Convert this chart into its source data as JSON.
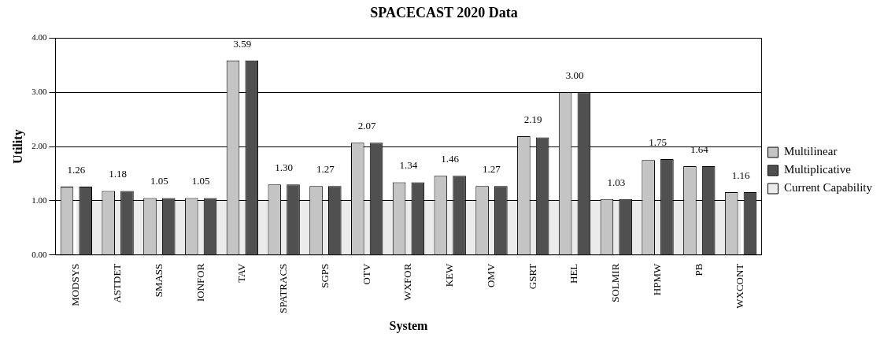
{
  "chart_data": {
    "type": "bar",
    "title": "SPACECAST 2020 Data",
    "xlabel": "System",
    "ylabel": "Utility",
    "categories": [
      "MODSYS",
      "ASTDET",
      "SMASS",
      "IONFOR",
      "TAV",
      "SPATRACS",
      "SGPS",
      "OTV",
      "WXFOR",
      "KEW",
      "OMV",
      "GSRT",
      "HEL",
      "SOLMIR",
      "HPMW",
      "PB",
      "WXCONT"
    ],
    "series": [
      {
        "name": "Multilinear",
        "color": "#c4c4c4",
        "values": [
          1.26,
          1.18,
          1.05,
          1.05,
          3.59,
          1.3,
          1.27,
          2.07,
          1.34,
          1.46,
          1.27,
          2.19,
          3.0,
          1.03,
          1.75,
          1.64,
          1.16
        ],
        "value_labels": [
          "1.26",
          "1.18",
          "1.05",
          "1.05",
          "3.59",
          "1.30",
          "1.27",
          "2.07",
          "1.34",
          "1.46",
          "1.27",
          "2.19",
          "3.00",
          "1.03",
          "1.75",
          "1.64",
          "1.16"
        ]
      },
      {
        "name": "Multiplicative",
        "color": "#505050",
        "values": [
          1.26,
          1.18,
          1.05,
          1.05,
          3.59,
          1.3,
          1.27,
          2.07,
          1.34,
          1.46,
          1.27,
          2.17,
          3.0,
          1.03,
          1.77,
          1.64,
          1.16
        ]
      },
      {
        "name": "Current Capability",
        "type": "area",
        "color": "#ebebeb",
        "values": [
          1,
          1,
          1,
          1,
          1,
          1,
          1,
          1,
          1,
          1,
          1,
          1,
          1,
          1,
          1,
          1,
          1
        ]
      }
    ],
    "ylim": [
      0,
      4
    ],
    "yticks": [
      {
        "value": 0,
        "label": "0.00"
      },
      {
        "value": 1,
        "label": "1.00"
      },
      {
        "value": 2,
        "label": "2.00"
      },
      {
        "value": 3,
        "label": "3.00"
      },
      {
        "value": 4,
        "label": "4.00"
      }
    ],
    "grid": "y",
    "legend": "right"
  }
}
